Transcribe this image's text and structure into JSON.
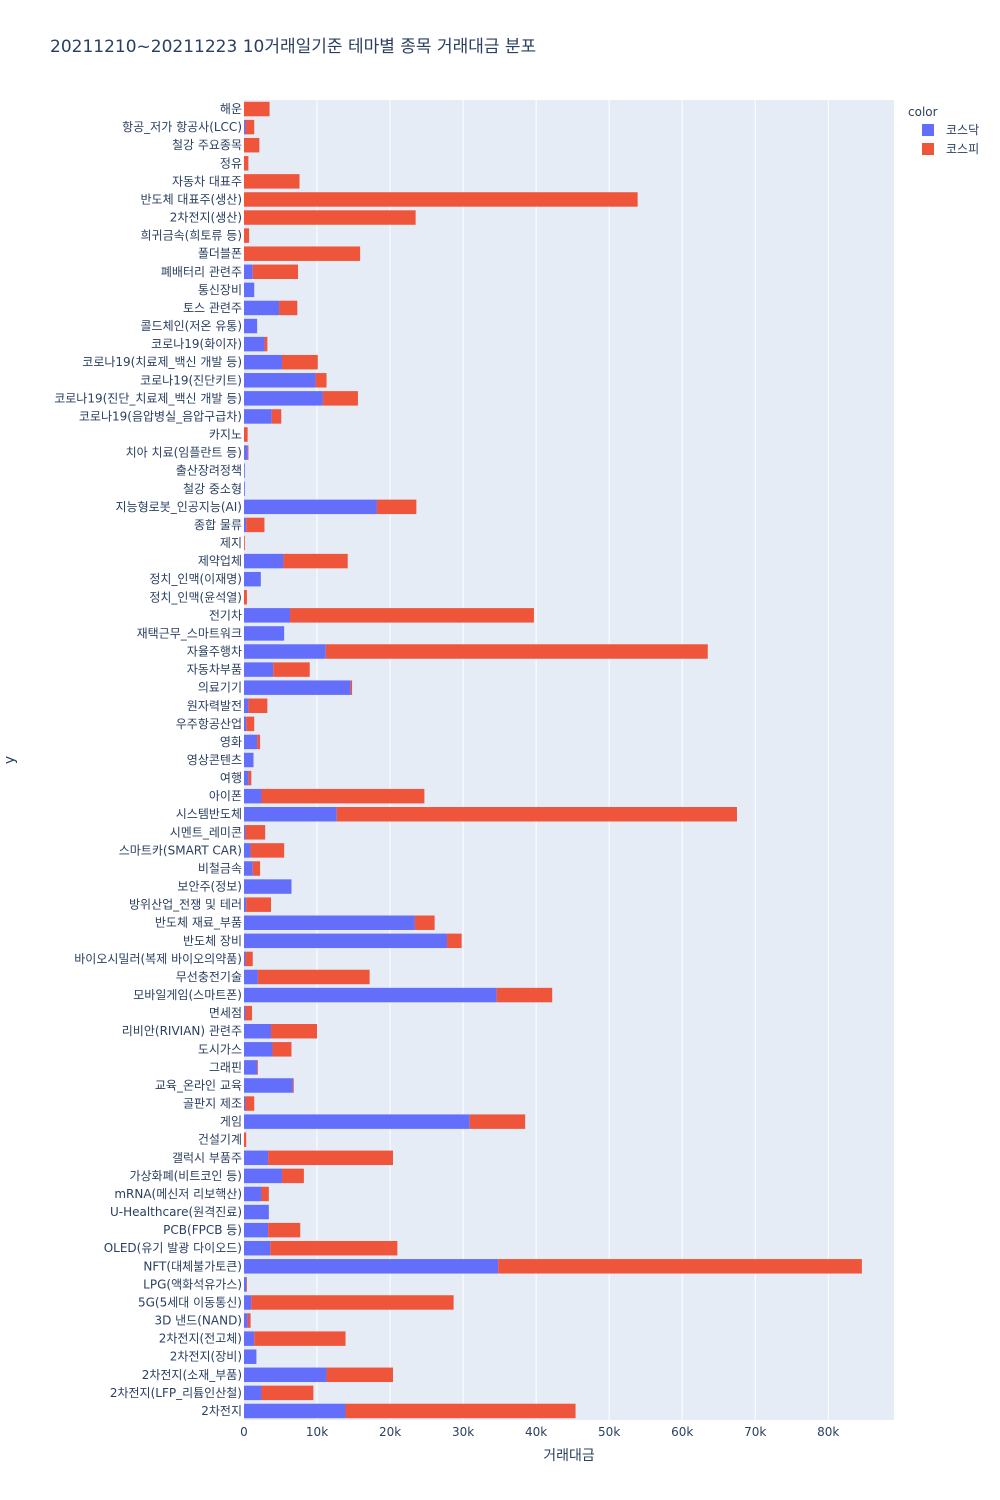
{
  "chart_data": {
    "type": "bar",
    "orientation": "horizontal",
    "barmode": "stack",
    "title": "20211210~20211223 10거래일기준 테마별 종목 거래대금 분포",
    "xlabel": "거래대금",
    "ylabel": "y",
    "xlim": [
      0,
      89000
    ],
    "xticks": [
      0,
      10000,
      20000,
      30000,
      40000,
      50000,
      60000,
      70000,
      80000
    ],
    "xtick_labels": [
      "0",
      "10k",
      "20k",
      "30k",
      "40k",
      "50k",
      "60k",
      "70k",
      "80k"
    ],
    "grid": true,
    "legend": {
      "title": "color",
      "placement": "top-right",
      "items": [
        {
          "name": "코스닥",
          "color": "#636efa"
        },
        {
          "name": "코스피",
          "color": "#ef553b"
        }
      ]
    },
    "categories": [
      "해운",
      "항공_저가 항공사(LCC)",
      "철강 주요종목",
      "정유",
      "자동차 대표주",
      "반도체 대표주(생산)",
      "2차전지(생산)",
      "희귀금속(희토류 등)",
      "폴더블폰",
      "폐배터리 관련주",
      "통신장비",
      "토스 관련주",
      "콜드체인(저온 유통)",
      "코로나19(화이자)",
      "코로나19(치료제_백신 개발 등)",
      "코로나19(진단키트)",
      "코로나19(진단_치료제_백신 개발 등)",
      "코로나19(음압병실_음압구급차)",
      "카지노",
      "치아 치료(임플란트 등)",
      "출산장려정책",
      "철강 중소형",
      "지능형로봇_인공지능(AI)",
      "종합 물류",
      "제지",
      "제약업체",
      "정치_인맥(이재명)",
      "정치_인맥(윤석열)",
      "전기차",
      "재택근무_스마트워크",
      "자율주행차",
      "자동차부품",
      "의료기기",
      "원자력발전",
      "우주항공산업",
      "영화",
      "영상콘텐츠",
      "여행",
      "아이폰",
      "시스템반도체",
      "시멘트_레미콘",
      "스마트카(SMART CAR)",
      "비철금속",
      "보안주(정보)",
      "방위산업_전쟁 및 테러",
      "반도체 재료_부품",
      "반도체 장비",
      "바이오시밀러(복제 바이오의약품)",
      "무선충전기술",
      "모바일게임(스마트폰)",
      "면세점",
      "리비안(RIVIAN) 관련주",
      "도시가스",
      "그래핀",
      "교육_온라인 교육",
      "골판지 제조",
      "게임",
      "건설기계",
      "갤럭시 부품주",
      "가상화폐(비트코인 등)",
      "mRNA(메신저 리보핵산)",
      "U-Healthcare(원격진료)",
      "PCB(FPCB 등)",
      "OLED(유기 발광 다이오드)",
      "NFT(대체불가토큰)",
      "LPG(액화석유가스)",
      "5G(5세대 이동통신)",
      "3D 낸드(NAND)",
      "2차전지(전고체)",
      "2차전지(장비)",
      "2차전지(소재_부품)",
      "2차전지(LFP_리튬인산철)",
      "2차전지"
    ],
    "series": [
      {
        "name": "코스닥",
        "values": [
          0,
          0.2,
          0,
          0,
          0,
          0,
          0,
          0,
          0,
          1.2,
          1.4,
          4.8,
          1.8,
          2.8,
          5.2,
          9.8,
          10.8,
          3.8,
          0,
          0.5,
          0.1,
          0.1,
          18.2,
          0.3,
          0,
          5.4,
          2.3,
          0,
          6.3,
          5.5,
          11.2,
          4.0,
          14.6,
          0.6,
          0.3,
          1.8,
          1.3,
          0.6,
          2.4,
          12.7,
          0.2,
          0.9,
          1.2,
          6.5,
          0.3,
          23.4,
          27.8,
          0.2,
          1.9,
          34.6,
          0.2,
          3.7,
          3.9,
          1.8,
          6.7,
          0.2,
          30.9,
          0,
          3.3,
          5.2,
          2.4,
          3.4,
          3.3,
          3.6,
          34.8,
          0.3,
          1.0,
          0.5,
          1.4,
          1.7,
          11.3,
          2.4,
          13.9
        ]
      },
      {
        "name": "코스피",
        "values": [
          3.5,
          1.2,
          2.1,
          0.6,
          7.6,
          53.9,
          23.5,
          0.7,
          15.9,
          6.2,
          0,
          2.5,
          0,
          0.4,
          4.9,
          1.5,
          4.8,
          1.3,
          0.5,
          0.1,
          0,
          0,
          5.4,
          2.5,
          0.1,
          8.8,
          0,
          0.4,
          33.4,
          0,
          52.3,
          5.0,
          0.2,
          2.6,
          1.1,
          0.4,
          0,
          0.4,
          22.3,
          54.8,
          2.7,
          4.6,
          1.0,
          0,
          3.4,
          2.7,
          2.0,
          1.0,
          15.3,
          7.6,
          0.9,
          6.3,
          2.6,
          0.1,
          0.1,
          1.2,
          7.6,
          0.3,
          17.1,
          3.0,
          1.0,
          0,
          4.4,
          17.4,
          49.8,
          0.1,
          27.7,
          0.4,
          12.5,
          0,
          9.1,
          7.1,
          31.5
        ]
      }
    ],
    "value_unit_note": ""
  }
}
